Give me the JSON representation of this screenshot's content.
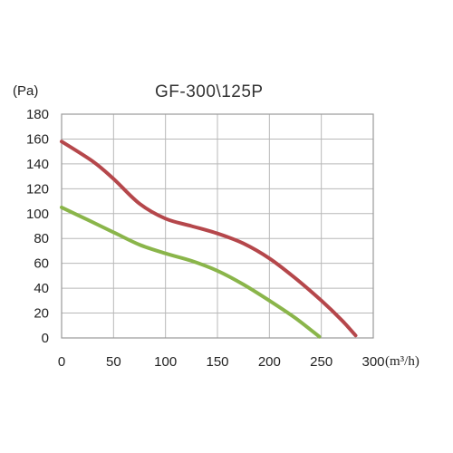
{
  "chart_data": {
    "type": "line",
    "title": "GF-300\\125P",
    "ylabel": "(Pa)",
    "xlabel": "(m³/h)",
    "xlim": [
      0,
      300
    ],
    "ylim": [
      0,
      180
    ],
    "x_ticks": [
      "0",
      "50",
      "100",
      "150",
      "200",
      "250",
      "300"
    ],
    "y_ticks": [
      "0",
      "20",
      "40",
      "60",
      "80",
      "100",
      "120",
      "140",
      "160",
      "180"
    ],
    "grid": true,
    "series": [
      {
        "color": "#b5474b",
        "x": [
          0,
          30,
          50,
          75,
          100,
          125,
          150,
          175,
          200,
          225,
          250,
          270,
          283
        ],
        "y": [
          158,
          142,
          128,
          108,
          96,
          90,
          84,
          76,
          64,
          48,
          30,
          14,
          2
        ]
      },
      {
        "color": "#8ab54a",
        "x": [
          0,
          25,
          50,
          75,
          100,
          125,
          150,
          175,
          200,
          225,
          248
        ],
        "y": [
          105,
          95,
          85,
          75,
          68,
          62,
          54,
          43,
          30,
          16,
          1
        ]
      }
    ]
  }
}
